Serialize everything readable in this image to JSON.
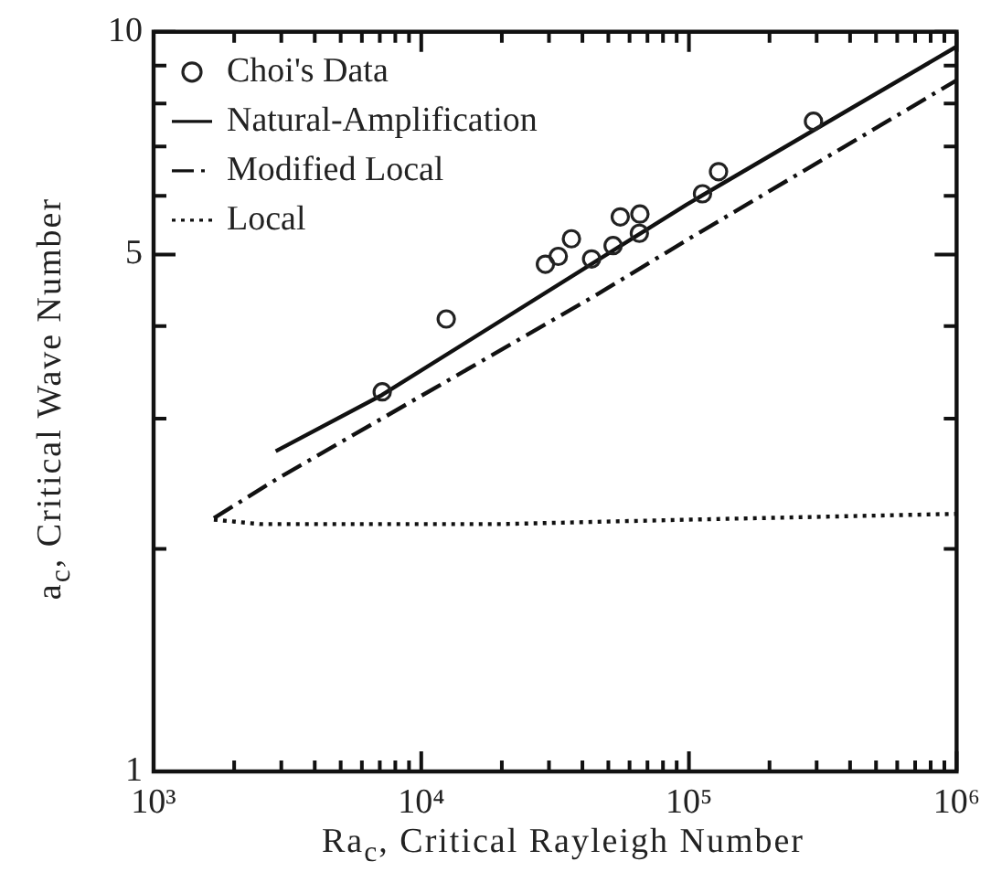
{
  "chart_data": {
    "type": "scatter",
    "xlabel": "Ra$_{c}$, Critical Rayleigh Number",
    "ylabel": "a$_{c}$, Critical Wave Number",
    "log": "xy",
    "grid": false,
    "legend": "top left",
    "xlim": [
      1000,
      1000000
    ],
    "ylim": [
      1,
      10
    ],
    "xticks": [
      {
        "value": 1000,
        "label": "10³"
      },
      {
        "value": 2000,
        "label": null
      },
      {
        "value": 3000,
        "label": null
      },
      {
        "value": 4000,
        "label": null
      },
      {
        "value": 5000,
        "label": null
      },
      {
        "value": 6000,
        "label": null
      },
      {
        "value": 7000,
        "label": null
      },
      {
        "value": 8000,
        "label": null
      },
      {
        "value": 9000,
        "label": null
      },
      {
        "value": 10000,
        "label": "10⁴"
      },
      {
        "value": 20000,
        "label": null
      },
      {
        "value": 30000,
        "label": null
      },
      {
        "value": 40000,
        "label": null
      },
      {
        "value": 50000,
        "label": null
      },
      {
        "value": 60000,
        "label": null
      },
      {
        "value": 70000,
        "label": null
      },
      {
        "value": 80000,
        "label": null
      },
      {
        "value": 90000,
        "label": null
      },
      {
        "value": 100000,
        "label": "10⁵"
      },
      {
        "value": 200000,
        "label": null
      },
      {
        "value": 300000,
        "label": null
      },
      {
        "value": 400000,
        "label": null
      },
      {
        "value": 500000,
        "label": null
      },
      {
        "value": 600000,
        "label": null
      },
      {
        "value": 700000,
        "label": null
      },
      {
        "value": 800000,
        "label": null
      },
      {
        "value": 900000,
        "label": null
      },
      {
        "value": 1000000,
        "label": "10⁶"
      }
    ],
    "yticks": [
      1,
      {
        "value": 2,
        "label": null
      },
      {
        "value": 3,
        "label": null
      },
      {
        "value": 4,
        "label": null
      },
      5,
      {
        "value": 6,
        "label": null
      },
      {
        "value": 7,
        "label": null
      },
      {
        "value": 8,
        "label": null
      },
      {
        "value": 9,
        "label": null
      },
      10
    ],
    "series": [
      {
        "name": "Choi's Data",
        "marker": "circle",
        "color": "#222222",
        "x": [
          7150,
          12400,
          29100,
          32500,
          36400,
          43300,
          52100,
          55400,
          65600,
          65300,
          112400,
          129000,
          292000
        ],
        "values": [
          3.26,
          4.09,
          4.85,
          4.97,
          5.25,
          4.93,
          5.14,
          5.62,
          5.67,
          5.34,
          6.04,
          6.47,
          7.57
        ]
      },
      {
        "name": "Natural-Amplification",
        "type": "line",
        "line_style": "solid",
        "marker": "none",
        "color": "#111111",
        "x": [
          2860,
          7150,
          98000,
          1000000
        ],
        "values": [
          2.71,
          3.23,
          5.84,
          9.55
        ]
      },
      {
        "name": "Modified Local",
        "type": "line",
        "line_style": "dashed",
        "marker": "none",
        "color": "#111111",
        "x": [
          1680,
          2860,
          44700,
          100000,
          1000000
        ],
        "values": [
          2.2,
          2.48,
          4.4,
          5.25,
          8.6
        ]
      },
      {
        "name": "Local",
        "type": "line",
        "line_style": "dotted",
        "marker": "none",
        "color": "#111111",
        "x": [
          1680,
          2500,
          20000,
          100000,
          1000000
        ],
        "values": [
          2.19,
          2.16,
          2.16,
          2.19,
          2.23
        ]
      }
    ]
  }
}
